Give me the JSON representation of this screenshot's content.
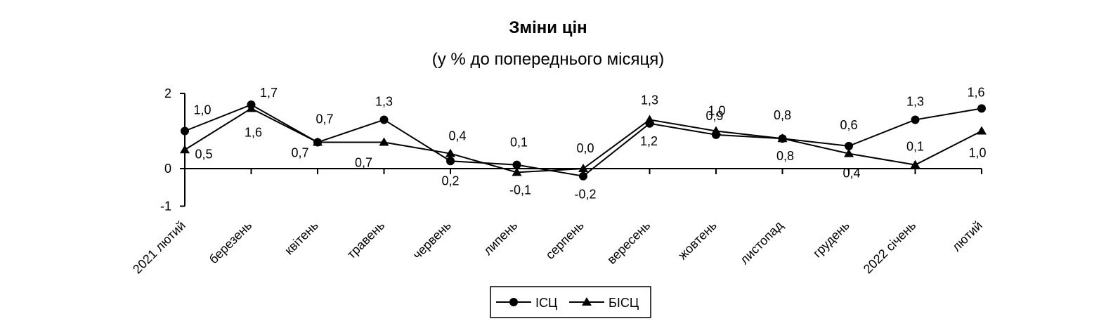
{
  "chart_data": {
    "type": "line",
    "title": "Зміни цін",
    "subtitle": "(у % до попереднього місяця)",
    "categories": [
      "2021 лютий",
      "березень",
      "квітень",
      "травень",
      "червень",
      "липень",
      "серпень",
      "вересень",
      "жовтень",
      "листопад",
      "грудень",
      "2022 січень",
      "лютий"
    ],
    "series": [
      {
        "name": "ІСЦ",
        "marker": "circle",
        "values": [
          1.0,
          1.7,
          0.7,
          1.3,
          0.2,
          0.1,
          -0.2,
          1.2,
          0.9,
          0.8,
          0.6,
          1.3,
          1.6
        ],
        "labels": [
          "1,0",
          "1,7",
          "0,7",
          "1,3",
          "0,2",
          "0,1",
          "-0,2",
          "1,2",
          "0,9",
          "0,8",
          "0,6",
          "1,3",
          "1,6"
        ]
      },
      {
        "name": "БІСЦ",
        "marker": "triangle",
        "values": [
          0.5,
          1.6,
          0.7,
          0.7,
          0.4,
          -0.1,
          0.0,
          1.3,
          1.0,
          0.8,
          0.4,
          0.1,
          1.0
        ],
        "labels": [
          "0,5",
          "1,6",
          "0,7",
          "0,7",
          "0,4",
          "-0,1",
          "0,0",
          "1,3",
          "1,0",
          "0,8",
          "0,4",
          "0,1",
          "1,0"
        ]
      }
    ],
    "y_ticks": [
      {
        "value": 2,
        "label": "2"
      },
      {
        "value": 0,
        "label": "0"
      },
      {
        "value": -1,
        "label": "-1"
      }
    ],
    "ylim": [
      -1,
      2
    ],
    "grid": false,
    "legend_position": "bottom-center",
    "color": "#000000"
  }
}
